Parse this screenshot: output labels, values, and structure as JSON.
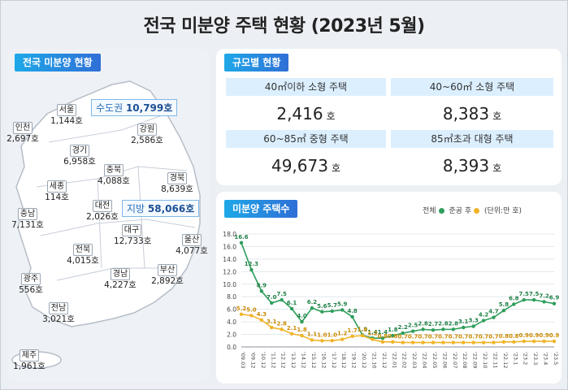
{
  "title": "전국 미분양 주택 현황  (2023년 5월)",
  "map": {
    "tag": "전국 미분양 현황",
    "regions": [
      {
        "name": "서울",
        "value": "1,144호"
      },
      {
        "name": "인천",
        "value": "2,697호"
      },
      {
        "name": "경기",
        "value": "6,958호"
      },
      {
        "name": "강원",
        "value": "2,586호"
      },
      {
        "name": "충북",
        "value": "4,088호"
      },
      {
        "name": "세종",
        "value": "114호"
      },
      {
        "name": "충남",
        "value": "7,131호"
      },
      {
        "name": "대전",
        "value": "2,026호"
      },
      {
        "name": "경북",
        "value": "8,639호"
      },
      {
        "name": "대구",
        "value": "12,733호"
      },
      {
        "name": "울산",
        "value": "4,077호"
      },
      {
        "name": "전북",
        "value": "4,015호"
      },
      {
        "name": "경남",
        "value": "4,227호"
      },
      {
        "name": "부산",
        "value": "2,892호"
      },
      {
        "name": "광주",
        "value": "556호"
      },
      {
        "name": "전남",
        "value": "3,021호"
      },
      {
        "name": "제주",
        "value": "1,961호"
      }
    ],
    "capital_label": "수도권",
    "capital_value": "10,799호",
    "local_label": "지방",
    "local_value": "58,066호"
  },
  "size": {
    "tag": "규모별 현황",
    "cells": [
      {
        "header": "40㎡이하 소형 주택",
        "value": "2,416",
        "unit": "호"
      },
      {
        "header": "40~60㎡ 소형 주택",
        "value": "8,383",
        "unit": "호"
      },
      {
        "header": "60~85㎡ 중형 주택",
        "value": "49,673",
        "unit": "호"
      },
      {
        "header": "85㎡초과 대형 주택",
        "value": "8,393",
        "unit": "호"
      }
    ]
  },
  "chart_data": {
    "type": "line",
    "title": "미분양 주택수",
    "unit_note": "(단위:만 호)",
    "x": [
      "'09.03",
      "'09.12",
      "'10.12",
      "'11.12",
      "'12.12",
      "'13.12",
      "'14.12",
      "'15.12",
      "'16.12",
      "'17.12",
      "'18.12",
      "'19.12",
      "'20.12",
      "'21.10",
      "'21.12",
      "'22.01",
      "'22.02",
      "'22.03",
      "'22.04",
      "'22.05",
      "'22.06",
      "'22.07",
      "'22.08",
      "'22.09",
      "'22.10",
      "'22.11",
      "'22.12",
      "'23.1",
      "'23.2",
      "'23.3",
      "'23.4",
      "'23.5"
    ],
    "ylim": [
      0,
      18
    ],
    "yticks": [
      "0.0",
      "2.0",
      "4.0",
      "6.0",
      "8.0",
      "10.0",
      "12.0",
      "14.0",
      "16.0",
      "18.0"
    ],
    "series": [
      {
        "name": "전체",
        "color": "#2e9e5b",
        "values": [
          16.6,
          12.3,
          8.9,
          7.0,
          7.5,
          6.1,
          4.0,
          6.2,
          5.6,
          5.7,
          5.9,
          4.8,
          1.9,
          1.4,
          1.4,
          1.8,
          2.2,
          2.5,
          2.8,
          2.7,
          2.8,
          2.8,
          3.1,
          3.3,
          4.2,
          4.7,
          5.8,
          6.8,
          7.5,
          7.5,
          7.2,
          6.9
        ],
        "labels": [
          "16.6",
          "12.3",
          "8.9",
          "7.0",
          "7.5",
          "6.1",
          "4.0",
          "6.2",
          "5.6",
          "5.7",
          "5.9",
          "4.8",
          "1.9",
          "1.4",
          "1.4",
          "1.8",
          "2.2",
          "2.5",
          "2.8",
          "2.7",
          "2.8",
          "2.8",
          "3.1",
          "3.3",
          "4.2",
          "4.7",
          "5.8",
          "6.8",
          "7.5",
          "7.5",
          "7.2",
          "6.9"
        ]
      },
      {
        "name": "준공 후",
        "color": "#f0b429",
        "values": [
          5.2,
          5.0,
          4.3,
          3.1,
          2.8,
          2.1,
          1.8,
          1.1,
          1.0,
          1.0,
          1.2,
          1.7,
          1.8,
          1.2,
          0.8,
          0.8,
          0.7,
          0.7,
          0.7,
          0.7,
          0.7,
          0.7,
          0.7,
          0.7,
          0.7,
          0.7,
          0.8,
          0.8,
          0.9,
          0.9,
          0.9,
          0.9
        ],
        "labels": [
          "5.2",
          "5.0",
          "4.3",
          "3.1",
          "2.8",
          "2.1",
          "1.8",
          "1.1",
          "1.0",
          "1.0",
          "1.2",
          "1.7",
          "1.8",
          "1.2",
          "0.8",
          "0.8",
          "0.7",
          "0.7",
          "0.7",
          "0.7",
          "0.7",
          "0.7",
          "0.7",
          "0.7",
          "0.7",
          "0.7",
          "0.8",
          "0.8",
          "0.9",
          "0.9",
          "0.9",
          "0.9"
        ]
      }
    ]
  }
}
